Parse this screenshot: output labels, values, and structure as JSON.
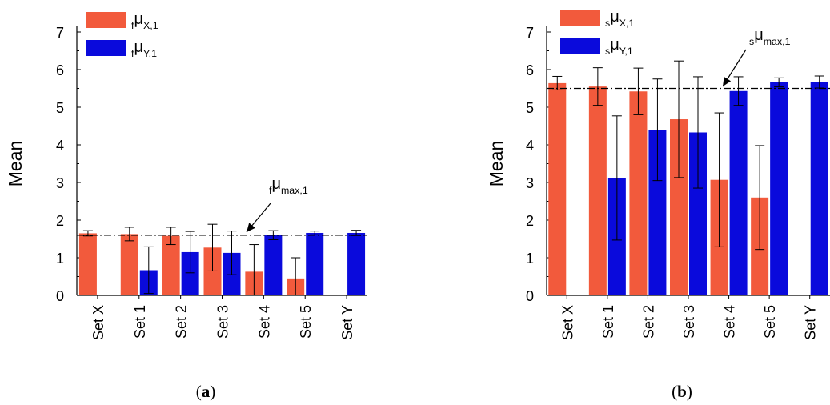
{
  "chart_data": [
    {
      "type": "bar",
      "panel_caption": {
        "open": "(",
        "letter": "a",
        "close": ")"
      },
      "ylabel": "Mean",
      "ylim": [
        0,
        7
      ],
      "yticks": [
        "0",
        "1",
        "2",
        "3",
        "4",
        "5",
        "6",
        "7"
      ],
      "categories": [
        "Set X",
        "Set 1",
        "Set 2",
        "Set 3",
        "Set 4",
        "Set 5",
        "Set Y"
      ],
      "series": [
        {
          "legend": {
            "pre": "f",
            "mu": "μ",
            "sub": "X,1"
          },
          "color": "#f25a3c",
          "values": [
            1.65,
            1.63,
            1.58,
            1.27,
            0.63,
            0.45,
            null
          ],
          "errors": [
            0.07,
            0.18,
            0.23,
            0.62,
            0.72,
            0.55,
            null
          ]
        },
        {
          "legend": {
            "pre": "f",
            "mu": "μ",
            "sub": "Y,1"
          },
          "color": "#0a0adc",
          "values": [
            null,
            0.67,
            1.15,
            1.13,
            1.6,
            1.66,
            1.66
          ],
          "errors": [
            null,
            0.62,
            0.55,
            0.58,
            0.12,
            0.05,
            0.07
          ]
        }
      ],
      "reference_line": {
        "value": 1.6,
        "style": "dash-dot",
        "label": {
          "pre": "f",
          "mu": "μ",
          "sub": "max,1"
        }
      }
    },
    {
      "type": "bar",
      "panel_caption": {
        "open": "(",
        "letter": "b",
        "close": ")"
      },
      "ylabel": "Mean",
      "ylim": [
        0,
        7
      ],
      "yticks": [
        "0",
        "1",
        "2",
        "3",
        "4",
        "5",
        "6",
        "7"
      ],
      "categories": [
        "Set X",
        "Set 1",
        "Set 2",
        "Set 3",
        "Set 4",
        "Set 5",
        "Set Y"
      ],
      "series": [
        {
          "legend": {
            "pre": "s",
            "mu": "μ",
            "sub": "X,1"
          },
          "color": "#f25a3c",
          "values": [
            5.64,
            5.55,
            5.42,
            4.68,
            3.07,
            2.6,
            null
          ],
          "errors": [
            0.18,
            0.5,
            0.62,
            1.55,
            1.78,
            1.38,
            null
          ]
        },
        {
          "legend": {
            "pre": "s",
            "mu": "μ",
            "sub": "Y,1"
          },
          "color": "#0a0adc",
          "values": [
            null,
            3.12,
            4.4,
            4.33,
            5.43,
            5.66,
            5.67
          ],
          "errors": [
            null,
            1.65,
            1.35,
            1.48,
            0.38,
            0.12,
            0.16
          ]
        }
      ],
      "reference_line": {
        "value": 5.5,
        "style": "dash-dot",
        "label": {
          "pre": "s",
          "mu": "μ",
          "sub": "max,1"
        }
      }
    }
  ]
}
